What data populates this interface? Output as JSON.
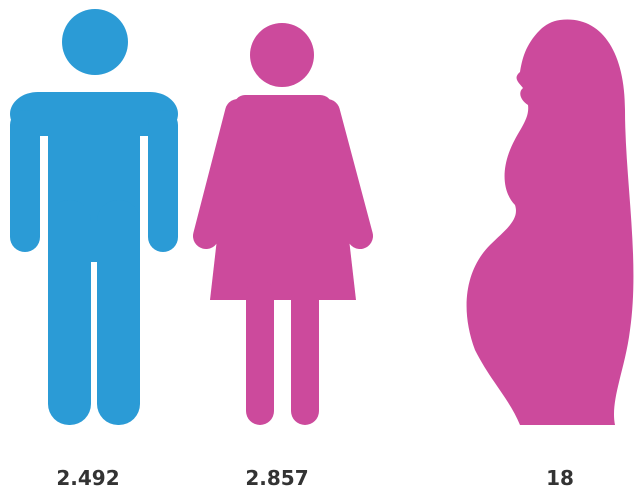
{
  "items": [
    {
      "label": "2.492"
    },
    {
      "label": "2.857"
    },
    {
      "label": "18"
    }
  ]
}
